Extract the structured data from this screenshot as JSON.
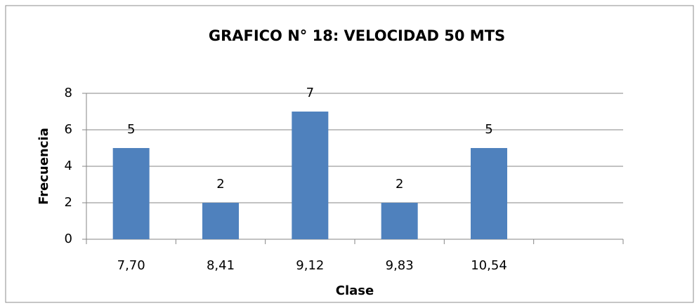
{
  "chart_data": {
    "type": "bar",
    "title": "GRAFICO N° 18: VELOCIDAD 50 MTS",
    "x_label": "Clase",
    "y_label": "Frecuencia",
    "categories": [
      "7,70",
      "8,41",
      "9,12",
      "9,83",
      "10,54",
      null
    ],
    "values": [
      5,
      2,
      7,
      2,
      5,
      null
    ],
    "color": "#4f81bd",
    "ylim": [
      0,
      8
    ],
    "yticks": [
      0,
      2,
      4,
      6,
      8
    ],
    "grid": true
  }
}
